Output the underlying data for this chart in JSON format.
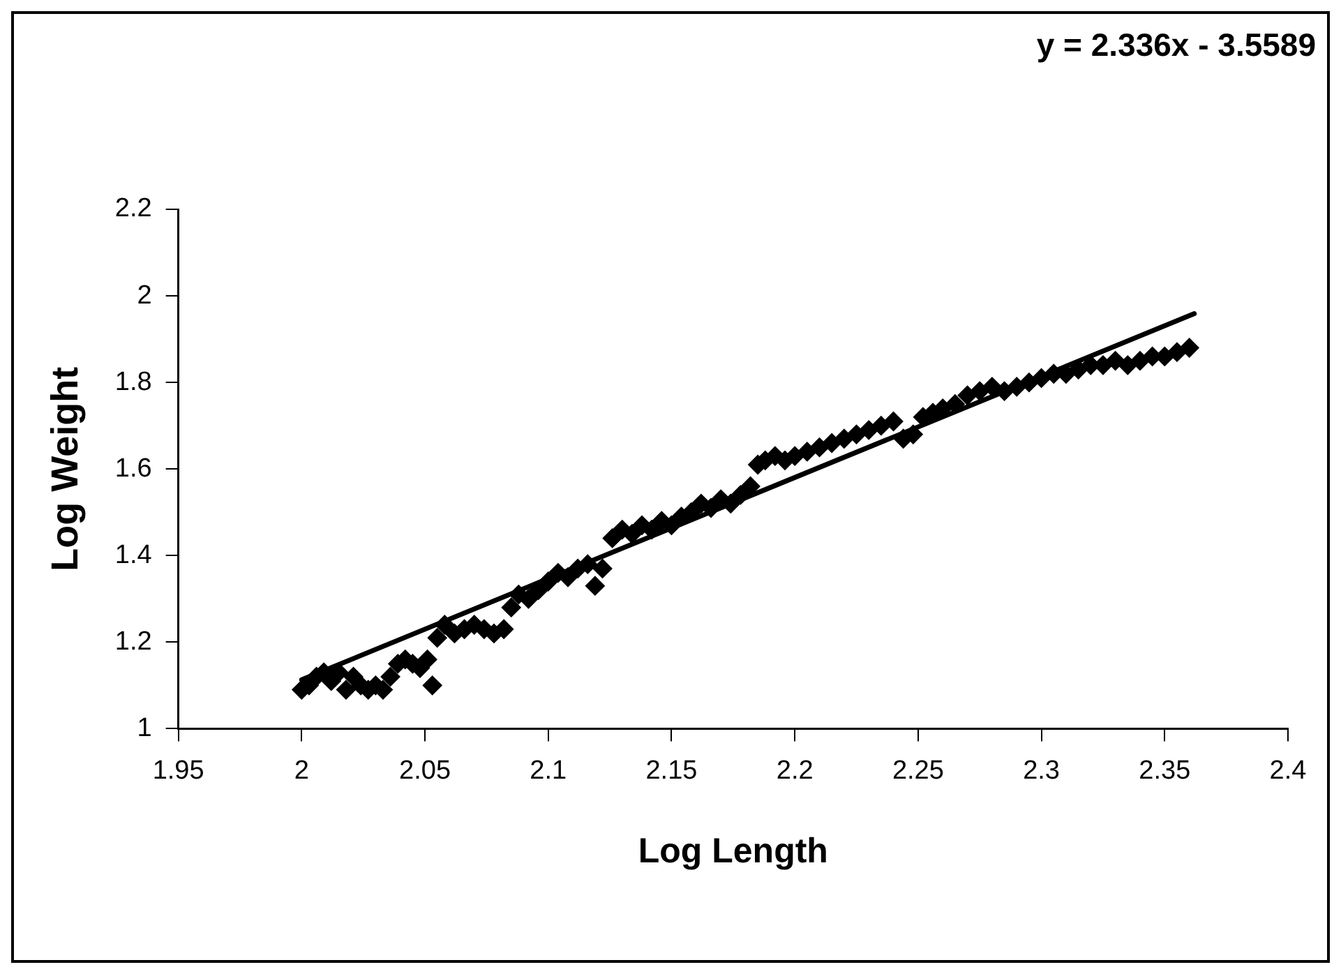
{
  "chart_data": {
    "type": "scatter",
    "xlabel": "Log Length",
    "ylabel": "Log Weight",
    "annotations": [
      "y = 2.336x - 3.5589"
    ],
    "xlim": [
      1.95,
      2.4
    ],
    "xticks": [
      1.95,
      2,
      2.05,
      2.1,
      2.15,
      2.2,
      2.25,
      2.3,
      2.35,
      2.4
    ],
    "ylim": [
      1,
      2.2
    ],
    "yticks": [
      1,
      1.2,
      1.4,
      1.6,
      1.8,
      2,
      2.2
    ],
    "grid": false,
    "legend": false,
    "series": [
      {
        "marker": "diamond",
        "color": "#000000",
        "x": [
          2.0,
          2.003,
          2.006,
          2.009,
          2.012,
          2.015,
          2.018,
          2.021,
          2.024,
          2.027,
          2.03,
          2.033,
          2.036,
          2.039,
          2.042,
          2.045,
          2.048,
          2.051,
          2.053,
          2.055,
          2.058,
          2.062,
          2.066,
          2.07,
          2.074,
          2.078,
          2.082,
          2.085,
          2.088,
          2.092,
          2.096,
          2.1,
          2.104,
          2.108,
          2.112,
          2.116,
          2.119,
          2.122,
          2.126,
          2.13,
          2.134,
          2.138,
          2.142,
          2.146,
          2.15,
          2.154,
          2.158,
          2.162,
          2.166,
          2.17,
          2.174,
          2.178,
          2.182,
          2.185,
          2.188,
          2.192,
          2.196,
          2.2,
          2.205,
          2.21,
          2.215,
          2.22,
          2.225,
          2.23,
          2.235,
          2.24,
          2.244,
          2.248,
          2.252,
          2.256,
          2.26,
          2.265,
          2.27,
          2.275,
          2.28,
          2.285,
          2.29,
          2.295,
          2.3,
          2.305,
          2.31,
          2.315,
          2.32,
          2.325,
          2.33,
          2.335,
          2.34,
          2.345,
          2.35,
          2.355,
          2.36
        ],
        "values": [
          1.09,
          1.1,
          1.12,
          1.13,
          1.11,
          1.13,
          1.09,
          1.12,
          1.1,
          1.09,
          1.1,
          1.09,
          1.12,
          1.15,
          1.16,
          1.15,
          1.14,
          1.16,
          1.1,
          1.21,
          1.24,
          1.22,
          1.23,
          1.24,
          1.23,
          1.22,
          1.23,
          1.28,
          1.31,
          1.3,
          1.32,
          1.34,
          1.36,
          1.35,
          1.37,
          1.38,
          1.33,
          1.37,
          1.44,
          1.46,
          1.45,
          1.47,
          1.46,
          1.48,
          1.47,
          1.49,
          1.5,
          1.52,
          1.51,
          1.53,
          1.52,
          1.54,
          1.56,
          1.61,
          1.62,
          1.63,
          1.62,
          1.63,
          1.64,
          1.65,
          1.66,
          1.67,
          1.68,
          1.69,
          1.7,
          1.71,
          1.67,
          1.68,
          1.72,
          1.73,
          1.74,
          1.75,
          1.77,
          1.78,
          1.79,
          1.78,
          1.79,
          1.8,
          1.81,
          1.82,
          1.82,
          1.83,
          1.84,
          1.84,
          1.85,
          1.84,
          1.85,
          1.86,
          1.86,
          1.87,
          1.88
        ]
      },
      {
        "type": "line",
        "marker": "none",
        "color": "#000000",
        "x": [
          2.0,
          2.362
        ],
        "values": [
          1.113,
          1.959
        ]
      }
    ]
  }
}
